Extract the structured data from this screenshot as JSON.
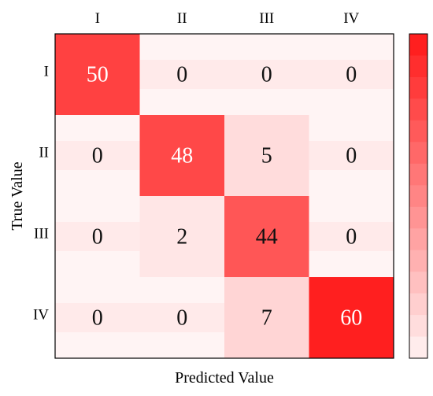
{
  "chart_data": {
    "type": "heatmap",
    "title": "",
    "xlabel": "Predicted Value",
    "ylabel": "True Value",
    "x_labels": [
      "I",
      "II",
      "III",
      "IV"
    ],
    "y_labels": [
      "I",
      "II",
      "III",
      "IV"
    ],
    "values": [
      [
        50,
        0,
        0,
        0
      ],
      [
        0,
        48,
        5,
        0
      ],
      [
        0,
        2,
        44,
        0
      ],
      [
        0,
        0,
        7,
        60
      ]
    ],
    "colorbar": {
      "min": 0,
      "max": 60,
      "steps": 15,
      "tick_labels": false
    },
    "colors": {
      "low": "#ffffff",
      "high": "#ff1f1f",
      "text": "#111111",
      "text_on_dark": "#ffffff",
      "frame": "#000000"
    },
    "grid": false,
    "legend": "colorbar-right"
  }
}
